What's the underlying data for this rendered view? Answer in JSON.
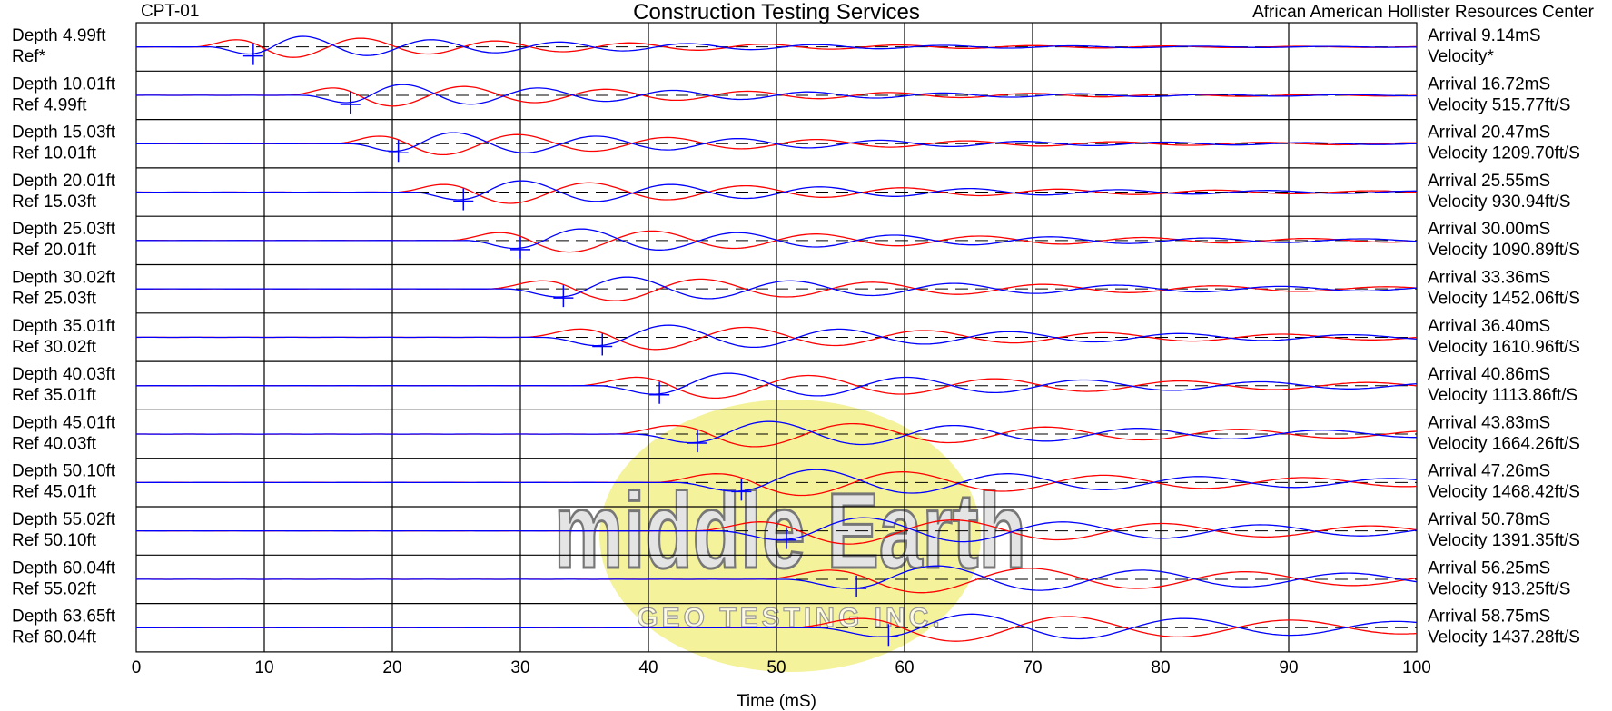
{
  "header": {
    "project_id": "CPT-01",
    "title": "Construction Testing Services",
    "site": "African American Hollister Resources Center"
  },
  "watermark": {
    "logo_text": "middle Earth",
    "logo_subtext": "GEO TESTING INC.",
    "colors": {
      "ellipse": "#f2f08a",
      "letters": "#bdbdbd"
    }
  },
  "colors": {
    "reference_trace": "#0000ff",
    "depth_trace": "#ff0000",
    "grid": "#000000",
    "baseline": "#000000",
    "arrival_marker": "#0000ff"
  },
  "chart_data": {
    "type": "line",
    "xlabel": "Time (mS)",
    "xlim": [
      0,
      100
    ],
    "x_ticks": [
      0,
      10,
      20,
      30,
      40,
      50,
      60,
      70,
      80,
      90,
      100
    ],
    "grid": "vertical lines every 10 mS",
    "traces": [
      {
        "depth_label": "Depth 4.99ft",
        "ref_label": "Ref*",
        "arrival_label": "Arrival 9.14mS",
        "velocity_label": "Velocity*",
        "arrival_ms": 9.14
      },
      {
        "depth_label": "Depth 10.01ft",
        "ref_label": "Ref 4.99ft",
        "arrival_label": "Arrival 16.72mS",
        "velocity_label": "Velocity 515.77ft/S",
        "arrival_ms": 16.72
      },
      {
        "depth_label": "Depth 15.03ft",
        "ref_label": "Ref 10.01ft",
        "arrival_label": "Arrival 20.47mS",
        "velocity_label": "Velocity 1209.70ft/S",
        "arrival_ms": 20.47
      },
      {
        "depth_label": "Depth 20.01ft",
        "ref_label": "Ref 15.03ft",
        "arrival_label": "Arrival 25.55mS",
        "velocity_label": "Velocity 930.94ft/S",
        "arrival_ms": 25.55
      },
      {
        "depth_label": "Depth 25.03ft",
        "ref_label": "Ref 20.01ft",
        "arrival_label": "Arrival 30.00mS",
        "velocity_label": "Velocity 1090.89ft/S",
        "arrival_ms": 30.0
      },
      {
        "depth_label": "Depth 30.02ft",
        "ref_label": "Ref 25.03ft",
        "arrival_label": "Arrival 33.36mS",
        "velocity_label": "Velocity 1452.06ft/S",
        "arrival_ms": 33.36
      },
      {
        "depth_label": "Depth 35.01ft",
        "ref_label": "Ref 30.02ft",
        "arrival_label": "Arrival 36.40mS",
        "velocity_label": "Velocity 1610.96ft/S",
        "arrival_ms": 36.4
      },
      {
        "depth_label": "Depth 40.03ft",
        "ref_label": "Ref 35.01ft",
        "arrival_label": "Arrival 40.86mS",
        "velocity_label": "Velocity 1113.86ft/S",
        "arrival_ms": 40.86
      },
      {
        "depth_label": "Depth 45.01ft",
        "ref_label": "Ref 40.03ft",
        "arrival_label": "Arrival 43.83mS",
        "velocity_label": "Velocity 1664.26ft/S",
        "arrival_ms": 43.83
      },
      {
        "depth_label": "Depth 50.10ft",
        "ref_label": "Ref 45.01ft",
        "arrival_label": "Arrival 47.26mS",
        "velocity_label": "Velocity 1468.42ft/S",
        "arrival_ms": 47.26
      },
      {
        "depth_label": "Depth 55.02ft",
        "ref_label": "Ref 50.10ft",
        "arrival_label": "Arrival 50.78mS",
        "velocity_label": "Velocity 1391.35ft/S",
        "arrival_ms": 50.78
      },
      {
        "depth_label": "Depth 60.04ft",
        "ref_label": "Ref 55.02ft",
        "arrival_label": "Arrival 56.25mS",
        "velocity_label": "Velocity 913.25ft/S",
        "arrival_ms": 56.25
      },
      {
        "depth_label": "Depth 63.65ft",
        "ref_label": "Ref 60.04ft",
        "arrival_label": "Arrival 58.75mS",
        "velocity_label": "Velocity 1437.28ft/S",
        "arrival_ms": 58.75
      }
    ]
  }
}
